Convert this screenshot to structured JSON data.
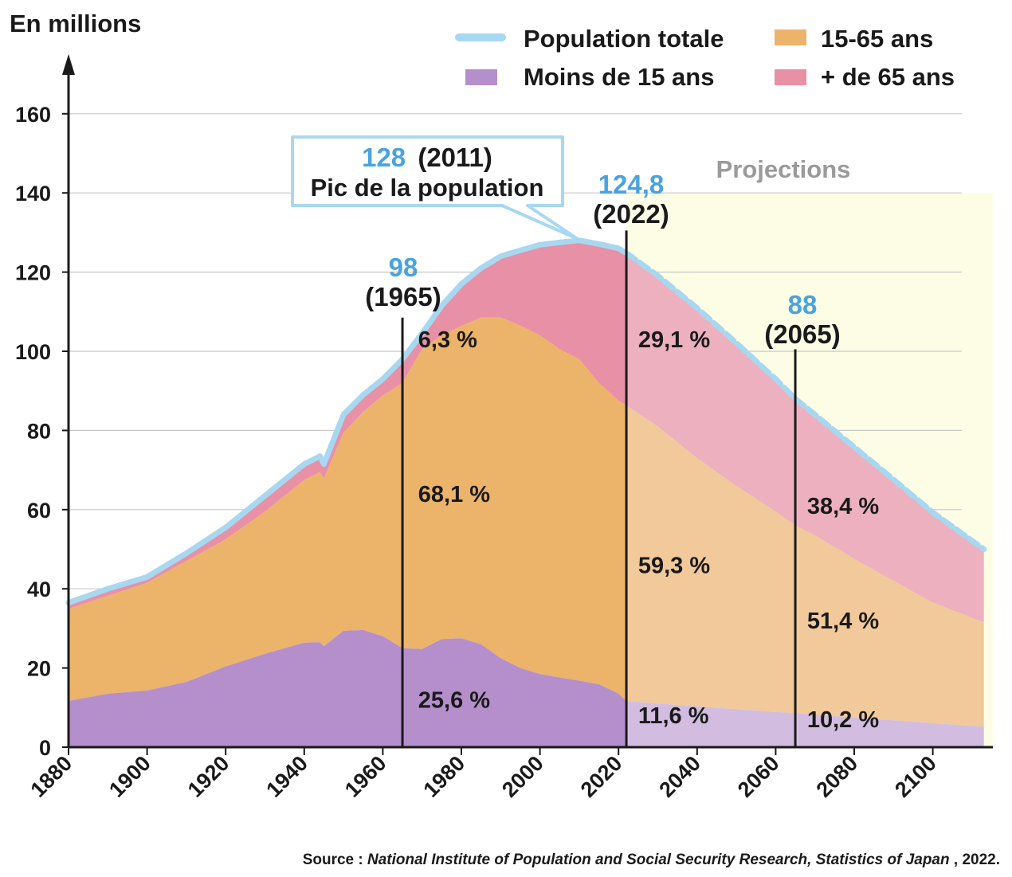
{
  "chart_data": {
    "type": "area",
    "ylabel": "En millions",
    "ylim": [
      0,
      170
    ],
    "yticks": [
      0,
      20,
      40,
      60,
      80,
      100,
      120,
      140,
      160
    ],
    "xlim": [
      1880,
      2115
    ],
    "xticks": [
      1880,
      1900,
      1920,
      1940,
      1960,
      1980,
      2000,
      2020,
      2040,
      2060,
      2080,
      2100
    ],
    "grid": "horizontal",
    "legend_position": "top-right",
    "legend": {
      "total": "Population totale",
      "mid": "15-65 ans",
      "young": "Moins de 15 ans",
      "old": "+ de 65 ans"
    },
    "colors": {
      "total": "#a8d8f0",
      "young": "#b48fcb",
      "mid": "#ecb36b",
      "old": "#e890a6",
      "young_proj": "#d2bde0",
      "mid_proj": "#f2c99a",
      "old_proj": "#ecb0bf",
      "projection_bg": "#fdfde6",
      "accent": "#4aa3df"
    },
    "projection_start": 2022,
    "projection_label": "Projections",
    "years": [
      1880,
      1890,
      1900,
      1910,
      1920,
      1930,
      1940,
      1944,
      1945,
      1950,
      1955,
      1960,
      1965,
      1970,
      1975,
      1980,
      1985,
      1990,
      1995,
      2000,
      2005,
      2010,
      2015,
      2020,
      2022,
      2030,
      2040,
      2050,
      2060,
      2065,
      2070,
      2080,
      2090,
      2100,
      2113
    ],
    "young": [
      11.7,
      13.5,
      14.3,
      16.5,
      20.4,
      23.6,
      26.4,
      26.5,
      25.5,
      29.4,
      29.6,
      28.0,
      25.0,
      24.8,
      27.3,
      27.5,
      26.0,
      22.5,
      20.0,
      18.5,
      17.6,
      16.8,
      15.9,
      13.5,
      11.6,
      11.0,
      10.3,
      9.6,
      8.9,
      8.6,
      8.2,
      7.5,
      6.8,
      6.1,
      5.2
    ],
    "mid_top": [
      34.9,
      38.2,
      41.5,
      47.0,
      52.5,
      59.5,
      67.5,
      69.5,
      67.8,
      79.4,
      84.7,
      88.8,
      92.0,
      100.5,
      104.0,
      106.4,
      108.5,
      108.5,
      106.5,
      104.0,
      100.5,
      98.0,
      92.0,
      87.5,
      86.3,
      81.0,
      73.0,
      66.0,
      59.5,
      56.0,
      53.5,
      47.5,
      42.0,
      36.5,
      31.5
    ],
    "total": [
      36.5,
      40.0,
      43.0,
      49.0,
      55.5,
      63.5,
      71.5,
      73.5,
      71.5,
      84.0,
      89.0,
      93.0,
      98.0,
      104.5,
      111.5,
      117.0,
      121.0,
      124.0,
      125.5,
      126.9,
      127.5,
      128.0,
      127.1,
      126.0,
      124.8,
      119.1,
      110.9,
      102.1,
      93.0,
      88.0,
      84.0,
      75.8,
      67.6,
      59.3,
      50.0
    ],
    "markers": [
      {
        "year": 1965,
        "value": "98",
        "year_label": "(1965)"
      },
      {
        "year": 2022,
        "value": "124,8",
        "year_label": "(2022)"
      },
      {
        "year": 2065,
        "value": "88",
        "year_label": "(2065)"
      }
    ],
    "peak": {
      "year": 2011,
      "value": 128,
      "value_label": "128",
      "year_label": "(2011)",
      "caption": "Pic de la population"
    },
    "percent_labels": [
      {
        "text": "6,3 %",
        "x": 1969,
        "y": 101
      },
      {
        "text": "68,1 %",
        "x": 1969,
        "y": 62
      },
      {
        "text": "25,6 %",
        "x": 1969,
        "y": 10
      },
      {
        "text": "29,1 %",
        "x": 2025,
        "y": 101
      },
      {
        "text": "59,3 %",
        "x": 2025,
        "y": 44
      },
      {
        "text": "11,6 %",
        "x": 2025,
        "y": 6
      },
      {
        "text": "38,4 %",
        "x": 2068,
        "y": 59
      },
      {
        "text": "51,4 %",
        "x": 2068,
        "y": 30
      },
      {
        "text": "10,2 %",
        "x": 2068,
        "y": 5
      }
    ],
    "source_label": "Source : ",
    "source_italic": "National Institute of Population and Social Security Research, Statistics of Japan",
    "source_year": ", 2022."
  }
}
